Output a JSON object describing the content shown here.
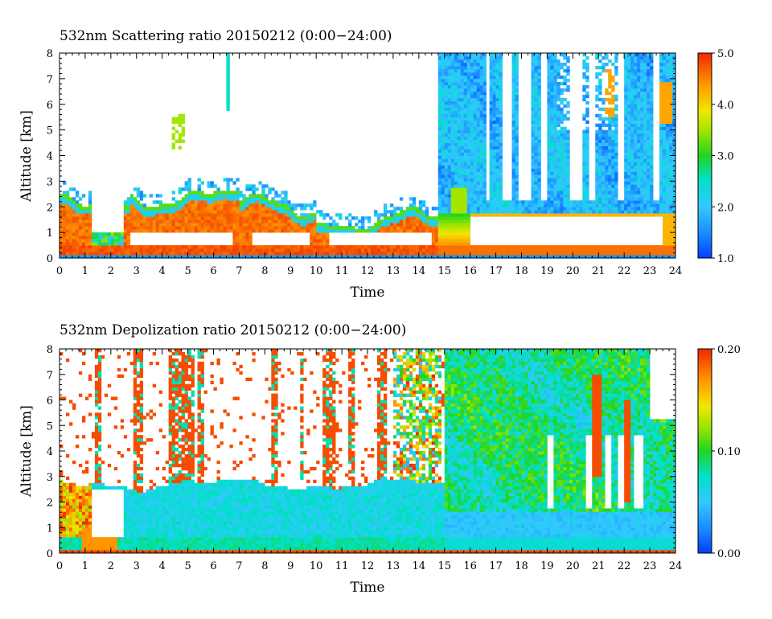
{
  "chart_data": [
    {
      "type": "heatmap",
      "title": "532nm Scattering ratio  20150212 (0:00−24:00)",
      "xlabel": "Time",
      "ylabel": "Altitude [km]",
      "xlim": [
        0,
        24
      ],
      "ylim": [
        0,
        8
      ],
      "xticks": [
        "0",
        "1",
        "2",
        "3",
        "4",
        "5",
        "6",
        "7",
        "8",
        "9",
        "10",
        "11",
        "12",
        "13",
        "14",
        "15",
        "16",
        "17",
        "18",
        "19",
        "20",
        "21",
        "22",
        "23",
        "24"
      ],
      "yticks": [
        "0",
        "1",
        "2",
        "3",
        "4",
        "5",
        "6",
        "7",
        "8"
      ],
      "colorbar": {
        "min": 1.0,
        "max": 5.0,
        "labels": [
          "1.0",
          "2.0",
          "3.0",
          "4.0",
          "5.0"
        ],
        "ticks": [
          1.0,
          2.0,
          3.0,
          4.0,
          5.0
        ]
      },
      "features": {
        "boundary_layer_top_km": 2.2,
        "cloud_base_km": 0.5,
        "high_layer_start_time": 14.8,
        "high_layer_bottom_km": 1.7
      }
    },
    {
      "type": "heatmap",
      "title": "532nm Depolization ratio  20150212 (0:00−24:00)",
      "xlabel": "Time",
      "ylabel": "Altitude [km]",
      "xlim": [
        0,
        24
      ],
      "ylim": [
        0,
        8
      ],
      "xticks": [
        "0",
        "1",
        "2",
        "3",
        "4",
        "5",
        "6",
        "7",
        "8",
        "9",
        "10",
        "11",
        "12",
        "13",
        "14",
        "15",
        "16",
        "17",
        "18",
        "19",
        "20",
        "21",
        "22",
        "23",
        "24"
      ],
      "yticks": [
        "0",
        "1",
        "2",
        "3",
        "4",
        "5",
        "6",
        "7",
        "8"
      ],
      "colorbar": {
        "min": 0.0,
        "max": 0.2,
        "labels": [
          "0.00",
          "0.10",
          "0.20"
        ],
        "ticks": [
          0.0,
          0.1,
          0.2
        ]
      }
    }
  ]
}
